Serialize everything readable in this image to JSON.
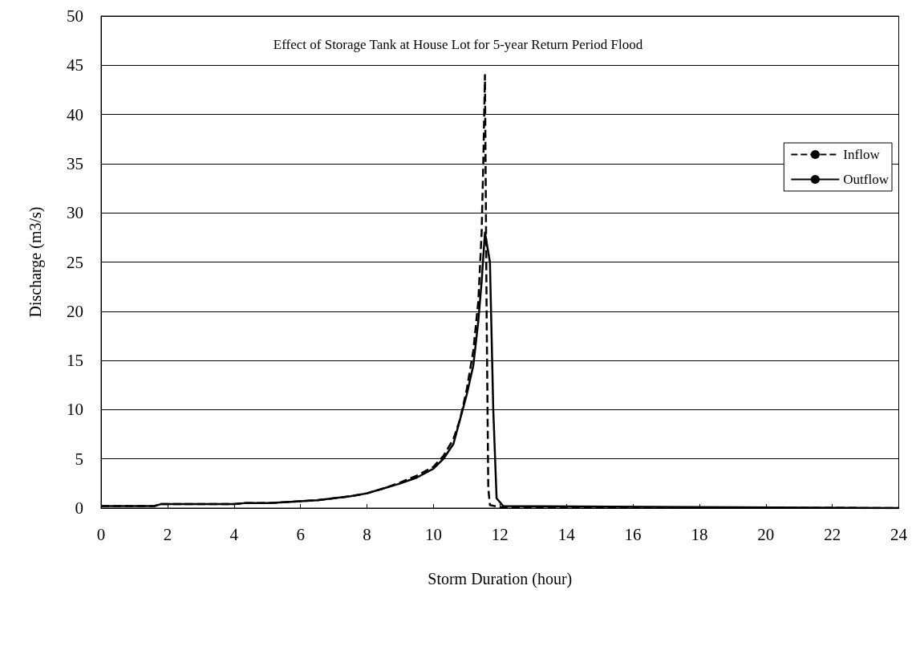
{
  "chart_data": {
    "type": "line",
    "title": "Effect of Storage Tank at House Lot for 5-year Return Period Flood",
    "xlabel": "Storm Duration (hour)",
    "ylabel": "Discharge (m3/s)",
    "xlim": [
      0,
      24
    ],
    "xticks": [
      0,
      2,
      4,
      6,
      8,
      10,
      12,
      14,
      16,
      18,
      20,
      22,
      24
    ],
    "ylim": [
      0,
      50
    ],
    "yticks": [
      0,
      5,
      10,
      15,
      20,
      25,
      30,
      35,
      40,
      45,
      50
    ],
    "grid": "y",
    "legend": "top right",
    "marker": "none",
    "series": [
      {
        "name": "Inflow",
        "color": "#000000",
        "line_style": "dashed",
        "x": [
          0,
          1.6,
          1.8,
          4,
          4.3,
          5,
          5.5,
          6,
          6.5,
          7,
          7.5,
          8,
          8.5,
          9,
          9.5,
          10,
          10.3,
          10.6,
          10.8,
          11,
          11.2,
          11.35,
          11.45,
          11.5,
          11.55,
          11.6,
          11.65,
          11.7,
          12,
          24
        ],
        "values": [
          0.2,
          0.2,
          0.4,
          0.4,
          0.5,
          0.5,
          0.6,
          0.7,
          0.8,
          1.0,
          1.2,
          1.5,
          2.0,
          2.6,
          3.3,
          4.2,
          5.3,
          7,
          9,
          12,
          16,
          21,
          28,
          35,
          44,
          20,
          2,
          0.3,
          0.1,
          0
        ]
      },
      {
        "name": "Outflow",
        "color": "#000000",
        "line_style": "solid",
        "x": [
          0,
          1.6,
          1.8,
          4,
          4.3,
          5,
          5.5,
          6,
          6.5,
          7,
          7.5,
          8,
          8.5,
          9,
          9.5,
          10,
          10.3,
          10.6,
          10.8,
          11,
          11.2,
          11.35,
          11.45,
          11.55,
          11.7,
          11.8,
          11.9,
          12.1,
          24
        ],
        "values": [
          0.2,
          0.2,
          0.4,
          0.4,
          0.5,
          0.5,
          0.6,
          0.7,
          0.8,
          1.0,
          1.2,
          1.5,
          2.0,
          2.5,
          3.1,
          4.0,
          5,
          6.5,
          9,
          11.5,
          14.5,
          19,
          23,
          28,
          25,
          10,
          1,
          0.2,
          0
        ]
      }
    ]
  }
}
